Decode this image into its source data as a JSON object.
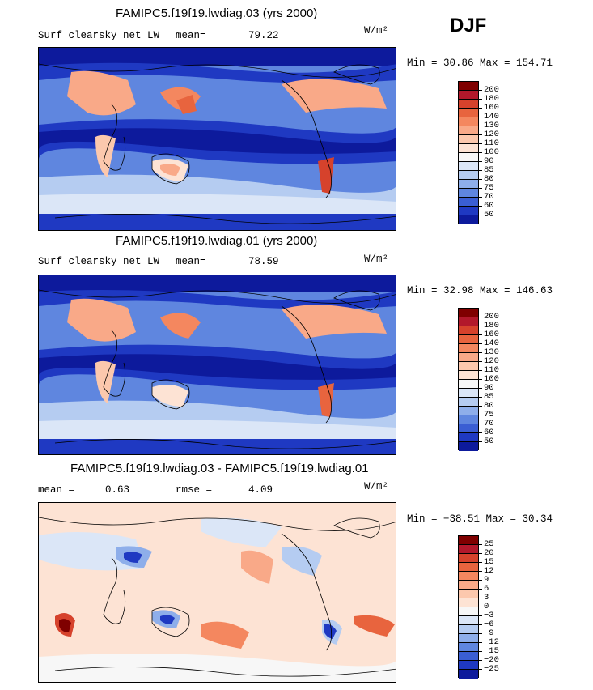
{
  "season": "DJF",
  "panels": [
    {
      "title": "FAMIPC5.f19f19.lwdiag.03 (yrs 2000)",
      "variable": "Surf clearsky net LW",
      "stat1_label": "mean=",
      "stat1_value": "79.22",
      "stat2_label": "",
      "stat2_value": "",
      "units": "W/m²",
      "minmax": "Min =  30.86 Max = 154.71",
      "colorbar": {
        "labels": [
          "200",
          "180",
          "160",
          "140",
          "130",
          "120",
          "110",
          "100",
          "90",
          "85",
          "80",
          "75",
          "70",
          "60",
          "50"
        ],
        "colors": [
          "#7f0000",
          "#b2182b",
          "#d6422c",
          "#e8643e",
          "#f4875f",
          "#f9a988",
          "#fcc8ad",
          "#fde3d4",
          "#f7f7f7",
          "#dbe6f7",
          "#b5ccf1",
          "#8eaeea",
          "#5f86df",
          "#3a5ed3",
          "#1f39c2",
          "#0d1a9c"
        ]
      }
    },
    {
      "title": "FAMIPC5.f19f19.lwdiag.01 (yrs 2000)",
      "variable": "Surf clearsky net LW",
      "stat1_label": "mean=",
      "stat1_value": "78.59",
      "stat2_label": "",
      "stat2_value": "",
      "units": "W/m²",
      "minmax": "Min =  32.98 Max = 146.63",
      "colorbar": {
        "labels": [
          "200",
          "180",
          "160",
          "140",
          "130",
          "120",
          "110",
          "100",
          "90",
          "85",
          "80",
          "75",
          "70",
          "60",
          "50"
        ],
        "colors": [
          "#7f0000",
          "#b2182b",
          "#d6422c",
          "#e8643e",
          "#f4875f",
          "#f9a988",
          "#fcc8ad",
          "#fde3d4",
          "#f7f7f7",
          "#dbe6f7",
          "#b5ccf1",
          "#8eaeea",
          "#5f86df",
          "#3a5ed3",
          "#1f39c2",
          "#0d1a9c"
        ]
      }
    },
    {
      "title": "FAMIPC5.f19f19.lwdiag.03 - FAMIPC5.f19f19.lwdiag.01",
      "variable": "",
      "stat1_label": "mean =",
      "stat1_value": "0.63",
      "stat2_label": "rmse =",
      "stat2_value": "4.09",
      "units": "W/m²",
      "minmax": "Min = −38.51 Max =  30.34",
      "colorbar": {
        "labels": [
          "25",
          "20",
          "15",
          "12",
          "9",
          "6",
          "3",
          "0",
          "−3",
          "−6",
          "−9",
          "−12",
          "−15",
          "−20",
          "−25"
        ],
        "colors": [
          "#7f0000",
          "#b2182b",
          "#d6422c",
          "#e8643e",
          "#f4875f",
          "#f9a988",
          "#fcc8ad",
          "#fde3d4",
          "#f7f7f7",
          "#dbe6f7",
          "#b5ccf1",
          "#8eaeea",
          "#5f86df",
          "#3a5ed3",
          "#1f39c2",
          "#0d1a9c"
        ]
      }
    }
  ]
}
